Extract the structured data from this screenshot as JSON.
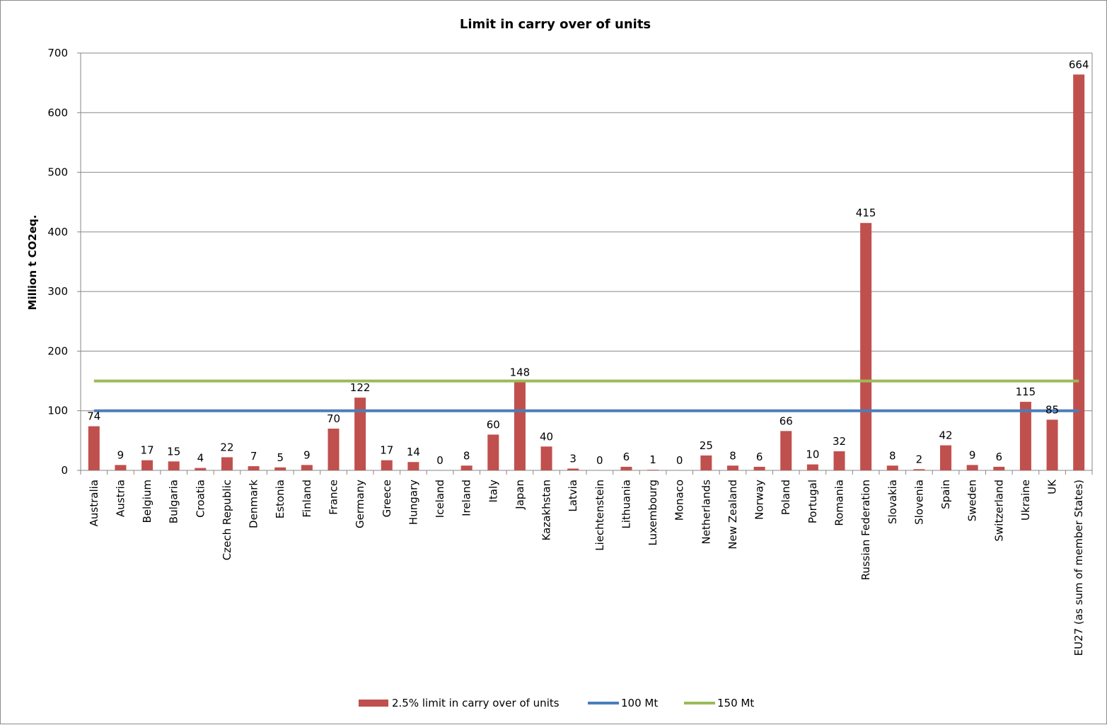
{
  "chart_data": {
    "type": "bar",
    "title": "Limit in carry over of units",
    "xlabel": "",
    "ylabel": "Million t CO2eq.",
    "ylim": [
      0,
      700
    ],
    "yticks": [
      0,
      100,
      200,
      300,
      400,
      500,
      600,
      700
    ],
    "grid": true,
    "legend_position": "bottom",
    "categories": [
      "Australia",
      "Austria",
      "Belgium",
      "Bulgaria",
      "Croatia",
      "Czech Republic",
      "Denmark",
      "Estonia",
      "Finland",
      "France",
      "Germany",
      "Greece",
      "Hungary",
      "Iceland",
      "Ireland",
      "Italy",
      "Japan",
      "Kazakhstan",
      "Latvia",
      "Liechtenstein",
      "Lithuania",
      "Luxembourg",
      "Monaco",
      "Netherlands",
      "New Zealand",
      "Norway",
      "Poland",
      "Portugal",
      "Romania",
      "Russian Federation",
      "Slovakia",
      "Slovenia",
      "Spain",
      "Sweden",
      "Switzerland",
      "Ukraine",
      "UK",
      "EU27 (as sum of member States)"
    ],
    "series": [
      {
        "name": "2.5% limit in carry over of units",
        "kind": "bar",
        "color": "#c0504d",
        "values": [
          74,
          9,
          17,
          15,
          4,
          22,
          7,
          5,
          9,
          70,
          122,
          17,
          14,
          0,
          8,
          60,
          148,
          40,
          3,
          0,
          6,
          1,
          0,
          25,
          8,
          6,
          66,
          10,
          32,
          415,
          8,
          2,
          42,
          9,
          6,
          115,
          85,
          664
        ]
      },
      {
        "name": "100 Mt",
        "kind": "hline",
        "color": "#4a7ebb",
        "value": 100
      },
      {
        "name": "150 Mt",
        "kind": "hline",
        "color": "#9bbb59",
        "value": 150
      }
    ]
  }
}
